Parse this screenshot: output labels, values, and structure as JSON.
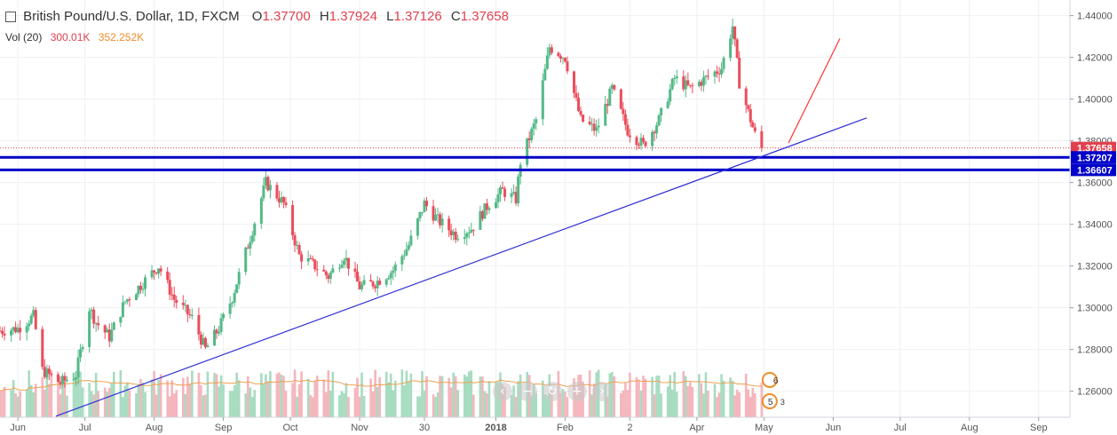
{
  "legend": {
    "symbol": "financial-instrument-icon",
    "title": "British Pound/U.S. Dollar, 1D, FXCM",
    "o_label": "O",
    "o_value": "1.37700",
    "h_label": "H",
    "h_value": "1.37924",
    "l_label": "L",
    "l_value": "1.37126",
    "c_label": "C",
    "c_value": "1.37658"
  },
  "volume_legend": {
    "label": "Vol (20)",
    "value": "300.01K",
    "ma_value": "352.252K"
  },
  "price_labels": {
    "last": "1.37658",
    "support_upper": "1.37207",
    "support_lower": "1.36607"
  },
  "event_flags": [
    {
      "icon": "uk-flag-icon",
      "count": "6"
    },
    {
      "icon": "us-flag-icon",
      "count": "5"
    },
    {
      "icon": "event-count",
      "count": "3"
    }
  ],
  "nav_buttons": [
    {
      "icon": "scroll-left-icon",
      "glyph": "‹"
    },
    {
      "icon": "zoom-out-icon",
      "glyph": "−"
    },
    {
      "icon": "reset-icon",
      "glyph": "↻"
    },
    {
      "icon": "zoom-in-icon",
      "glyph": "+"
    },
    {
      "icon": "scroll-right-icon",
      "glyph": "›"
    }
  ],
  "chart_data": {
    "type": "candlestick",
    "x_axis": {
      "ticks": [
        {
          "label": "Jun",
          "date": "2017-06-01"
        },
        {
          "label": "Jul",
          "date": "2017-07-01"
        },
        {
          "label": "Aug",
          "date": "2017-08-01"
        },
        {
          "label": "Sep",
          "date": "2017-09-01"
        },
        {
          "label": "Oct",
          "date": "2017-10-01"
        },
        {
          "label": "Nov",
          "date": "2017-11-01"
        },
        {
          "label": "30",
          "date": "2017-11-30"
        },
        {
          "label": "2018",
          "date": "2018-01-01"
        },
        {
          "label": "Feb",
          "date": "2018-02-01"
        },
        {
          "label": "2",
          "date": "2018-03-02"
        },
        {
          "label": "Apr",
          "date": "2018-04-01"
        },
        {
          "label": "May",
          "date": "2018-05-01"
        },
        {
          "label": "Jun",
          "date": "2018-06-01"
        },
        {
          "label": "Jul",
          "date": "2018-07-01"
        },
        {
          "label": "Aug",
          "date": "2018-08-01"
        },
        {
          "label": "Sep",
          "date": "2018-09-01"
        }
      ],
      "range": [
        "2017-05-24",
        "2018-09-15"
      ]
    },
    "y_axis": {
      "ticks": [
        "1.44000",
        "1.42000",
        "1.40000",
        "1.38000",
        "1.36000",
        "1.34000",
        "1.32000",
        "1.30000",
        "1.28000",
        "1.26000"
      ],
      "range": [
        1.2475,
        1.4475
      ]
    },
    "price_anchors": [
      [
        "2017-05-24",
        1.289
      ],
      [
        "2017-06-01",
        1.29
      ],
      [
        "2017-06-08",
        1.296
      ],
      [
        "2017-06-12",
        1.27
      ],
      [
        "2017-06-20",
        1.264
      ],
      [
        "2017-06-27",
        1.268
      ],
      [
        "2017-07-03",
        1.3
      ],
      [
        "2017-07-06",
        1.293
      ],
      [
        "2017-07-12",
        1.286
      ],
      [
        "2017-07-19",
        1.303
      ],
      [
        "2017-07-27",
        1.312
      ],
      [
        "2017-08-03",
        1.32
      ],
      [
        "2017-08-10",
        1.304
      ],
      [
        "2017-08-18",
        1.295
      ],
      [
        "2017-08-24",
        1.28
      ],
      [
        "2017-08-30",
        1.29
      ],
      [
        "2017-09-05",
        1.305
      ],
      [
        "2017-09-12",
        1.33
      ],
      [
        "2017-09-20",
        1.36
      ],
      [
        "2017-09-28",
        1.35
      ],
      [
        "2017-10-05",
        1.325
      ],
      [
        "2017-10-12",
        1.32
      ],
      [
        "2017-10-18",
        1.315
      ],
      [
        "2017-10-25",
        1.325
      ],
      [
        "2017-11-01",
        1.31
      ],
      [
        "2017-11-08",
        1.312
      ],
      [
        "2017-11-16",
        1.318
      ],
      [
        "2017-11-23",
        1.33
      ],
      [
        "2017-11-30",
        1.35
      ],
      [
        "2017-12-06",
        1.342
      ],
      [
        "2017-12-14",
        1.335
      ],
      [
        "2017-12-21",
        1.338
      ],
      [
        "2017-12-29",
        1.35
      ],
      [
        "2018-01-04",
        1.356
      ],
      [
        "2018-01-10",
        1.352
      ],
      [
        "2018-01-12",
        1.37
      ],
      [
        "2018-01-19",
        1.39
      ],
      [
        "2018-01-25",
        1.425
      ],
      [
        "2018-02-01",
        1.42
      ],
      [
        "2018-02-08",
        1.39
      ],
      [
        "2018-02-15",
        1.385
      ],
      [
        "2018-02-22",
        1.405
      ],
      [
        "2018-03-01",
        1.385
      ],
      [
        "2018-03-08",
        1.378
      ],
      [
        "2018-03-15",
        1.39
      ],
      [
        "2018-03-22",
        1.41
      ],
      [
        "2018-03-29",
        1.405
      ],
      [
        "2018-04-05",
        1.41
      ],
      [
        "2018-04-12",
        1.415
      ],
      [
        "2018-04-17",
        1.435
      ],
      [
        "2018-04-20",
        1.408
      ],
      [
        "2018-04-27",
        1.383
      ],
      [
        "2018-04-30",
        1.3766
      ]
    ],
    "last_close": 1.37658,
    "horizontal_levels": [
      1.37207,
      1.36607
    ],
    "trendlines": [
      {
        "color": "#2f2fd6",
        "from": [
          "2017-06-18",
          1.248
        ],
        "to": [
          "2018-06-16",
          1.391
        ]
      },
      {
        "color": "#ff3333",
        "from": [
          "2018-05-12",
          1.379
        ],
        "to": [
          "2018-06-04",
          1.429
        ]
      }
    ],
    "volume_ma_color": "#f0a050",
    "colors": {
      "up": "#53b987",
      "down": "#eb4d5c",
      "up_vol": "#a8dcc1",
      "down_vol": "#f4b6bc",
      "level": "#0000c8"
    }
  }
}
